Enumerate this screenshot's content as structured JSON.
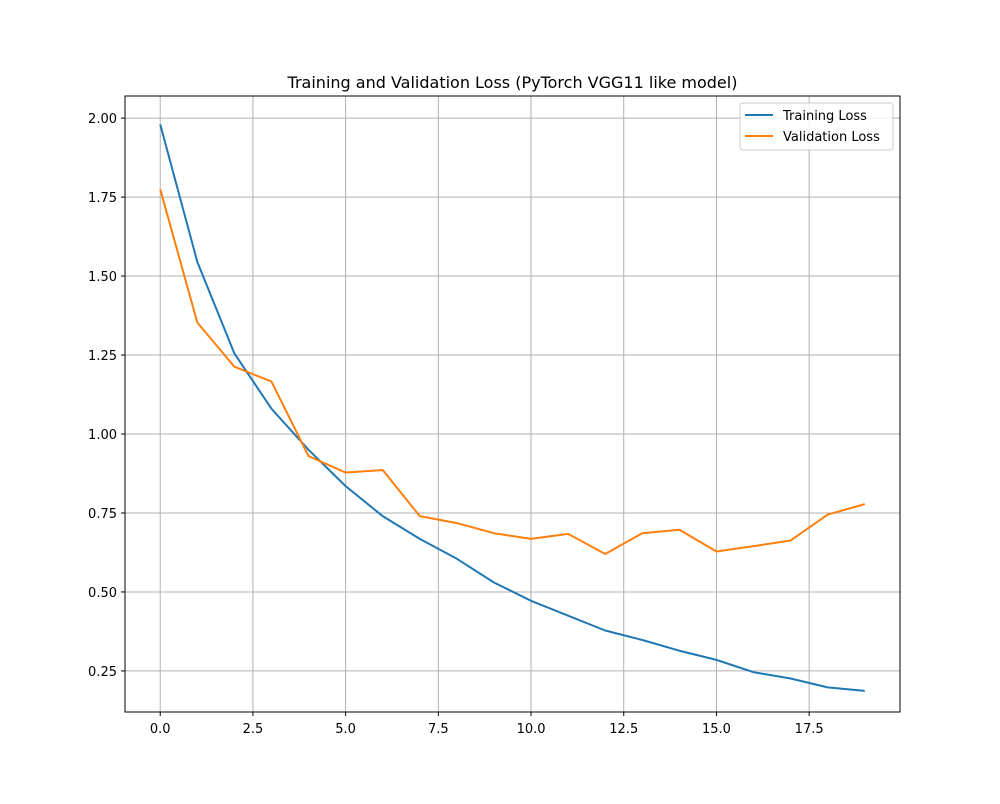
{
  "chart_data": {
    "type": "line",
    "title": "Training and Validation Loss (PyTorch VGG11 like model)",
    "xlabel": "",
    "ylabel": "",
    "xlim": [
      -0.95,
      19.95
    ],
    "ylim": [
      0.12,
      2.07
    ],
    "xticks": [
      0.0,
      2.5,
      5.0,
      7.5,
      10.0,
      12.5,
      15.0,
      17.5
    ],
    "xtick_labels": [
      "0.0",
      "2.5",
      "5.0",
      "7.5",
      "10.0",
      "12.5",
      "15.0",
      "17.5"
    ],
    "yticks": [
      0.25,
      0.5,
      0.75,
      1.0,
      1.25,
      1.5,
      1.75,
      2.0
    ],
    "ytick_labels": [
      "0.25",
      "0.50",
      "0.75",
      "1.00",
      "1.25",
      "1.50",
      "1.75",
      "2.00"
    ],
    "grid": true,
    "legend_position": "upper-right",
    "x": [
      0,
      1,
      2,
      3,
      4,
      5,
      6,
      7,
      8,
      9,
      10,
      11,
      12,
      13,
      14,
      15,
      16,
      17,
      18,
      19
    ],
    "series": [
      {
        "name": "Training Loss",
        "color": "#1f77b4",
        "values": [
          1.98,
          1.545,
          1.255,
          1.08,
          0.95,
          0.835,
          0.74,
          0.668,
          0.605,
          0.53,
          0.472,
          0.425,
          0.378,
          0.348,
          0.314,
          0.285,
          0.246,
          0.226,
          0.198,
          0.187
        ]
      },
      {
        "name": "Validation Loss",
        "color": "#ff7f0e",
        "values": [
          1.775,
          1.353,
          1.213,
          1.166,
          0.93,
          0.878,
          0.886,
          0.74,
          0.718,
          0.686,
          0.668,
          0.684,
          0.62,
          0.686,
          0.697,
          0.628,
          0.645,
          0.663,
          0.745,
          0.778
        ]
      }
    ]
  }
}
